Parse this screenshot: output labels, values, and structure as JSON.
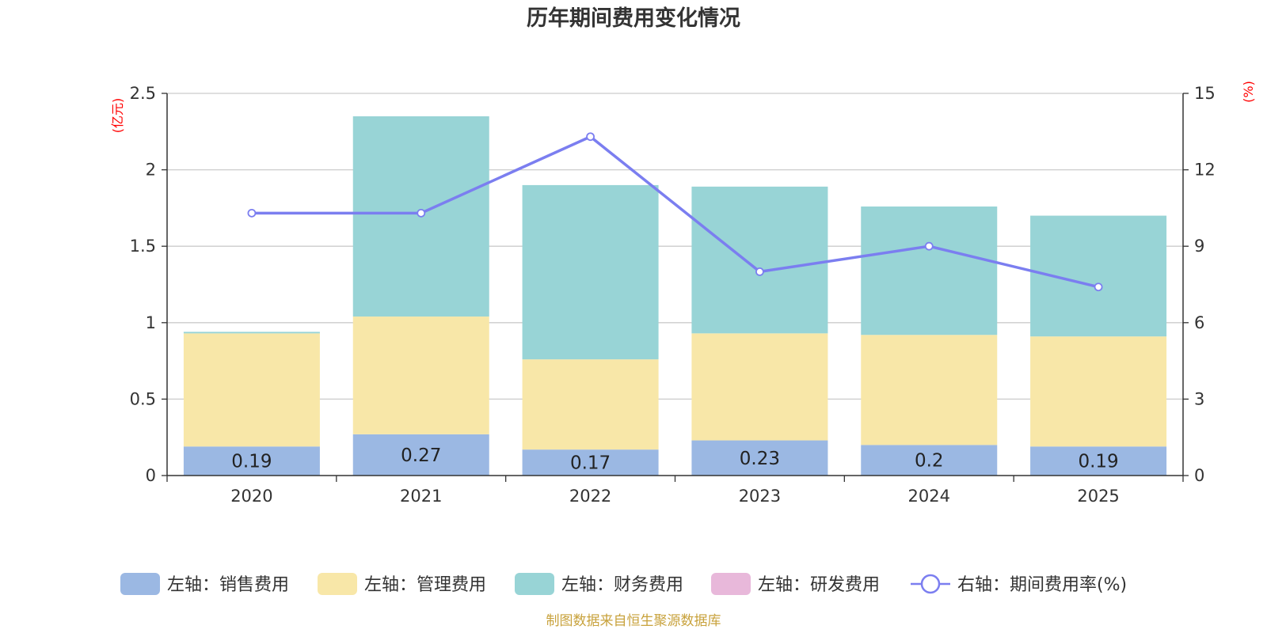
{
  "chart_data": {
    "type": "bar",
    "stacked": true,
    "title": "历年期间费用变化情况",
    "categories": [
      "2020",
      "2021",
      "2022",
      "2023",
      "2024",
      "2025"
    ],
    "left_axis": {
      "unit": "(亿元)",
      "ylim": [
        0,
        2.5
      ],
      "ticks": [
        {
          "value": 0,
          "label": "0"
        },
        {
          "value": 0.5,
          "label": "0.5"
        },
        {
          "value": 1,
          "label": "1"
        },
        {
          "value": 1.5,
          "label": "1.5"
        },
        {
          "value": 2,
          "label": "2"
        },
        {
          "value": 2.5,
          "label": "2.5"
        }
      ]
    },
    "right_axis": {
      "unit": "(%)",
      "ylim": [
        0,
        15
      ],
      "ticks": [
        {
          "value": 0,
          "label": "0"
        },
        {
          "value": 3,
          "label": "3"
        },
        {
          "value": 6,
          "label": "6"
        },
        {
          "value": 9,
          "label": "9"
        },
        {
          "value": 12,
          "label": "12"
        },
        {
          "value": 15,
          "label": "15"
        }
      ]
    },
    "series": [
      {
        "name": "左轴：销售费用",
        "kind": "bar",
        "axis": "left",
        "color": "#9bb8e3",
        "values": [
          0.19,
          0.27,
          0.17,
          0.23,
          0.2,
          0.19
        ],
        "labels": [
          "0.19",
          "0.27",
          "0.17",
          "0.23",
          "0.2",
          "0.19"
        ]
      },
      {
        "name": "左轴：管理费用",
        "kind": "bar",
        "axis": "left",
        "color": "#f8e7a8",
        "values": [
          0.74,
          0.77,
          0.59,
          0.7,
          0.72,
          0.72
        ]
      },
      {
        "name": "左轴：财务费用",
        "kind": "bar",
        "axis": "left",
        "color": "#98d4d6",
        "values": [
          0.01,
          1.31,
          1.14,
          0.96,
          0.84,
          0.79
        ]
      },
      {
        "name": "左轴：研发费用",
        "kind": "bar",
        "axis": "left",
        "color": "#e8b8da",
        "values": [
          0,
          0,
          0,
          0,
          0,
          0
        ]
      },
      {
        "name": "右轴：期间费用率(%)",
        "kind": "line",
        "axis": "right",
        "color": "#7b7ef0",
        "values": [
          10.3,
          10.3,
          13.3,
          8.0,
          9.0,
          7.4
        ]
      }
    ]
  },
  "source": {
    "text": "制图数据来自恒生聚源数据库",
    "color": "#c8a23c"
  }
}
